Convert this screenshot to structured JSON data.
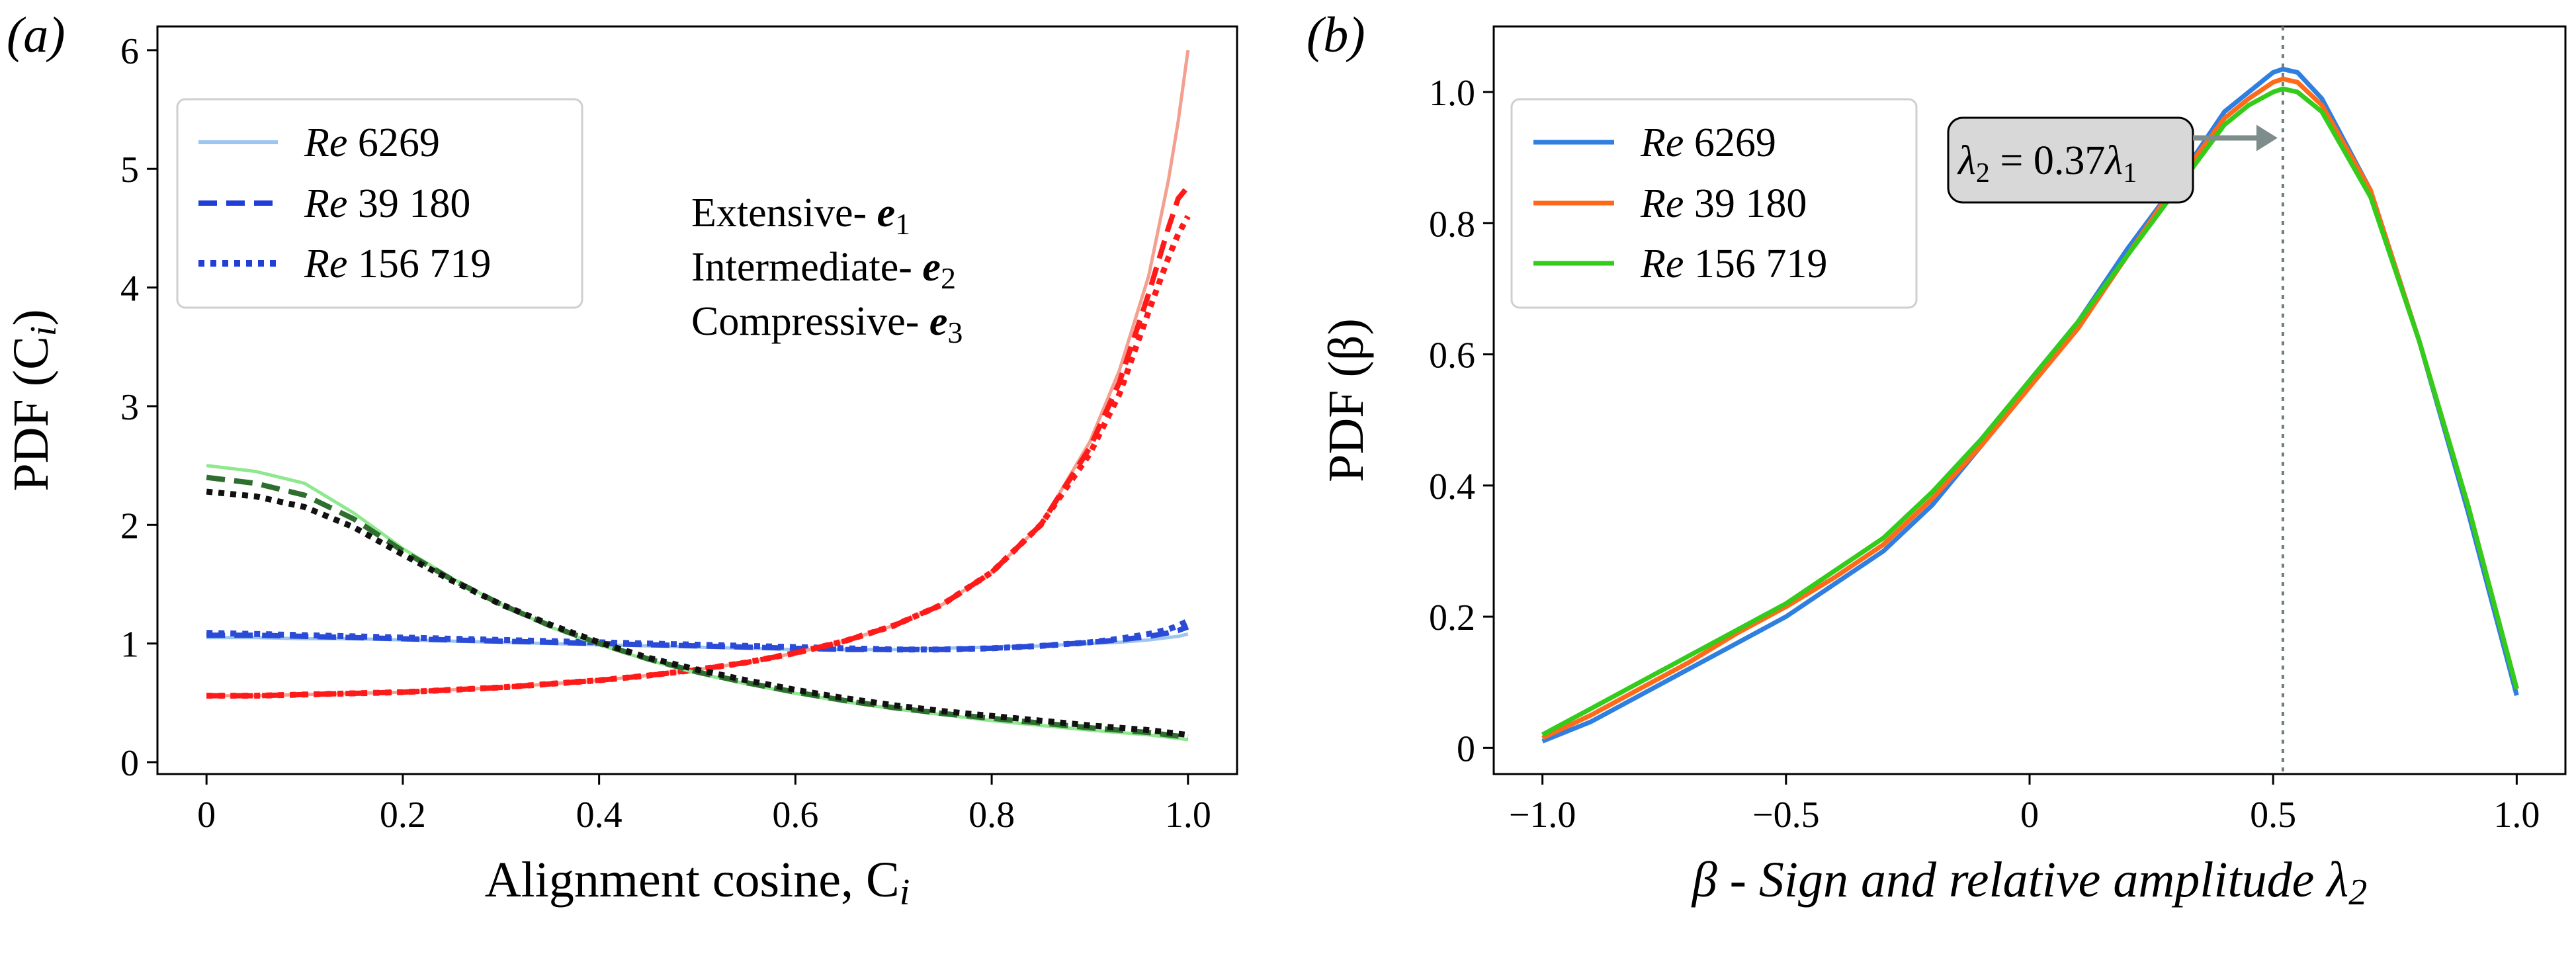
{
  "chart_data": [
    {
      "type": "line",
      "panel_label": "(a)",
      "xlabel": "Alignment cosine, C",
      "xlabel_sub": "i",
      "ylabel": "PDF (C",
      "ylabel_sub": "i",
      "ylabel_close": ")",
      "xlim": [
        -0.05,
        1.05
      ],
      "ylim": [
        -0.1,
        6.2
      ],
      "xticks": [
        0,
        0.2,
        0.4,
        0.6,
        0.8,
        1.0
      ],
      "xtick_labels": [
        "0",
        "0.2",
        "0.4",
        "0.6",
        "0.8",
        "1.0"
      ],
      "yticks": [
        0,
        1,
        2,
        3,
        4,
        5,
        6
      ],
      "ytick_labels": [
        "0",
        "1",
        "2",
        "3",
        "4",
        "5",
        "6"
      ],
      "grid": false,
      "legend_position": "top-left",
      "legend": [
        {
          "re": "Re",
          "value": "6269",
          "style": "solid",
          "color": "#9ec5f0"
        },
        {
          "re": "Re",
          "value": "39 180",
          "style": "dashed",
          "color": "#1f3fd6"
        },
        {
          "re": "Re",
          "value": "156 719",
          "style": "dotted",
          "color": "#1f3fd6"
        }
      ],
      "annotations": [
        {
          "text": "Extensive- ",
          "vec": "e",
          "sub": "1",
          "color": "#5b9bf0"
        },
        {
          "text": "Intermediate- ",
          "vec": "e",
          "sub": "2",
          "color": "#f2604a"
        },
        {
          "text": "Compressive- ",
          "vec": "e",
          "sub": "3",
          "color": "#55e055"
        }
      ],
      "x": [
        0,
        0.05,
        0.1,
        0.15,
        0.2,
        0.25,
        0.3,
        0.35,
        0.4,
        0.45,
        0.5,
        0.55,
        0.6,
        0.65,
        0.7,
        0.75,
        0.8,
        0.85,
        0.9,
        0.93,
        0.96,
        0.98,
        0.99,
        1.0
      ],
      "series": [
        {
          "name": "Extensive- e1 / Re 6269",
          "vector": "e1",
          "style": "solid",
          "color": "#9ec5f0",
          "width": 5,
          "values": [
            1.05,
            1.05,
            1.04,
            1.04,
            1.03,
            1.02,
            1.01,
            1.0,
            0.99,
            0.98,
            0.97,
            0.96,
            0.95,
            0.95,
            0.95,
            0.96,
            0.97,
            0.98,
            1.0,
            1.01,
            1.03,
            1.05,
            1.06,
            1.08
          ]
        },
        {
          "name": "Extensive- e1 / Re 39 180",
          "vector": "e1",
          "style": "dashed",
          "color": "#2a4ad8",
          "width": 8,
          "values": [
            1.07,
            1.07,
            1.06,
            1.05,
            1.04,
            1.03,
            1.02,
            1.01,
            1.0,
            0.99,
            0.98,
            0.97,
            0.96,
            0.95,
            0.95,
            0.95,
            0.96,
            0.98,
            1.01,
            1.03,
            1.06,
            1.09,
            1.11,
            1.14
          ]
        },
        {
          "name": "Extensive- e1 / Re 156 719",
          "vector": "e1",
          "style": "dotted",
          "color": "#2a4ad8",
          "width": 9,
          "values": [
            1.09,
            1.08,
            1.07,
            1.06,
            1.05,
            1.04,
            1.03,
            1.02,
            1.01,
            1.0,
            0.99,
            0.98,
            0.97,
            0.96,
            0.95,
            0.95,
            0.96,
            0.98,
            1.01,
            1.04,
            1.08,
            1.12,
            1.15,
            1.19
          ]
        },
        {
          "name": "Intermediate- e2 / Re 6269",
          "vector": "e2",
          "style": "solid",
          "color": "#f3a090",
          "width": 5,
          "values": [
            0.56,
            0.56,
            0.57,
            0.58,
            0.59,
            0.61,
            0.63,
            0.66,
            0.69,
            0.73,
            0.78,
            0.84,
            0.92,
            1.02,
            1.15,
            1.33,
            1.6,
            2.0,
            2.7,
            3.3,
            4.1,
            4.9,
            5.4,
            6.0
          ]
        },
        {
          "name": "Intermediate- e2 / Re 39 180",
          "vector": "e2",
          "style": "dashed",
          "color": "#ff1a1a",
          "width": 8,
          "values": [
            0.56,
            0.56,
            0.57,
            0.58,
            0.59,
            0.61,
            0.63,
            0.66,
            0.69,
            0.73,
            0.78,
            0.84,
            0.92,
            1.02,
            1.15,
            1.33,
            1.6,
            2.0,
            2.65,
            3.2,
            3.95,
            4.5,
            4.75,
            4.85
          ]
        },
        {
          "name": "Intermediate- e2 / Re 156 719",
          "vector": "e2",
          "style": "dotted",
          "color": "#ff1a1a",
          "width": 9,
          "values": [
            0.56,
            0.56,
            0.57,
            0.58,
            0.59,
            0.61,
            0.63,
            0.66,
            0.69,
            0.73,
            0.78,
            0.84,
            0.92,
            1.02,
            1.15,
            1.33,
            1.6,
            2.0,
            2.6,
            3.1,
            3.8,
            4.25,
            4.45,
            4.6
          ]
        },
        {
          "name": "Compressive- e3 / Re 6269",
          "vector": "e3",
          "style": "solid",
          "color": "#8ee88e",
          "width": 5,
          "values": [
            2.5,
            2.45,
            2.35,
            2.1,
            1.8,
            1.55,
            1.33,
            1.14,
            0.99,
            0.86,
            0.75,
            0.66,
            0.58,
            0.51,
            0.45,
            0.4,
            0.35,
            0.31,
            0.27,
            0.25,
            0.23,
            0.21,
            0.2,
            0.19
          ]
        },
        {
          "name": "Compressive- e3 / Re 39 180",
          "vector": "e3",
          "style": "dashed",
          "color": "#2e6e2e",
          "width": 8,
          "values": [
            2.4,
            2.35,
            2.25,
            2.05,
            1.78,
            1.54,
            1.33,
            1.15,
            1.0,
            0.87,
            0.76,
            0.67,
            0.59,
            0.52,
            0.46,
            0.41,
            0.37,
            0.33,
            0.29,
            0.27,
            0.25,
            0.23,
            0.22,
            0.21
          ]
        },
        {
          "name": "Compressive- e3 / Re 156 719",
          "vector": "e3",
          "style": "dotted",
          "color": "#111111",
          "width": 9,
          "values": [
            2.28,
            2.24,
            2.15,
            1.98,
            1.75,
            1.53,
            1.33,
            1.16,
            1.01,
            0.88,
            0.78,
            0.69,
            0.61,
            0.54,
            0.48,
            0.43,
            0.39,
            0.35,
            0.31,
            0.29,
            0.27,
            0.25,
            0.24,
            0.23
          ]
        }
      ]
    },
    {
      "type": "line",
      "panel_label": "(b)",
      "xlabel": "β - Sign and relative amplitude λ",
      "xlabel_sub": "2",
      "ylabel": "PDF (β)",
      "xlim": [
        -1.1,
        1.1
      ],
      "ylim": [
        -0.04,
        1.1
      ],
      "xticks": [
        -1.0,
        -0.5,
        0,
        0.5,
        1.0
      ],
      "xtick_labels": [
        "−1.0",
        "−0.5",
        "0",
        "0.5",
        "1.0"
      ],
      "yticks": [
        0,
        0.2,
        0.4,
        0.6,
        0.8,
        1.0
      ],
      "ytick_labels": [
        "0",
        "0.2",
        "0.4",
        "0.6",
        "0.8",
        "1.0"
      ],
      "grid": false,
      "legend_position": "top-left",
      "legend": [
        {
          "re": "Re",
          "value": "6269",
          "color": "#2f7fe0"
        },
        {
          "re": "Re",
          "value": "39 180",
          "color": "#ff6a1a"
        },
        {
          "re": "Re",
          "value": "156 719",
          "color": "#33cc1a"
        }
      ],
      "vline": {
        "x": 0.52,
        "style": "dotted",
        "color": "#6f7f7f"
      },
      "callout": {
        "lhs": "λ",
        "lhs_sub": "2",
        "eq": " = 0.37",
        "rhs": "λ",
        "rhs_sub": "1",
        "arrow_to": [
          0.52,
          0.93
        ]
      },
      "x": [
        -1.0,
        -0.9,
        -0.8,
        -0.7,
        -0.6,
        -0.5,
        -0.4,
        -0.3,
        -0.2,
        -0.1,
        0.0,
        0.1,
        0.2,
        0.3,
        0.4,
        0.45,
        0.5,
        0.52,
        0.55,
        0.6,
        0.7,
        0.8,
        0.9,
        0.95,
        1.0
      ],
      "series": [
        {
          "name": "Re 6269",
          "color": "#2f7fe0",
          "values": [
            0.01,
            0.04,
            0.08,
            0.12,
            0.16,
            0.2,
            0.25,
            0.3,
            0.37,
            0.46,
            0.56,
            0.65,
            0.76,
            0.86,
            0.97,
            1.0,
            1.03,
            1.035,
            1.03,
            0.99,
            0.85,
            0.62,
            0.36,
            0.22,
            0.08
          ]
        },
        {
          "name": "Re 39 180",
          "color": "#ff6a1a",
          "values": [
            0.015,
            0.05,
            0.09,
            0.13,
            0.175,
            0.215,
            0.26,
            0.31,
            0.38,
            0.46,
            0.55,
            0.64,
            0.75,
            0.86,
            0.96,
            0.99,
            1.015,
            1.02,
            1.015,
            0.98,
            0.85,
            0.62,
            0.37,
            0.23,
            0.09
          ]
        },
        {
          "name": "Re 156 719",
          "color": "#33cc1a",
          "values": [
            0.02,
            0.06,
            0.1,
            0.14,
            0.18,
            0.22,
            0.27,
            0.32,
            0.39,
            0.47,
            0.56,
            0.65,
            0.75,
            0.85,
            0.95,
            0.98,
            1.0,
            1.005,
            1.0,
            0.97,
            0.84,
            0.62,
            0.37,
            0.23,
            0.09
          ]
        }
      ]
    }
  ]
}
